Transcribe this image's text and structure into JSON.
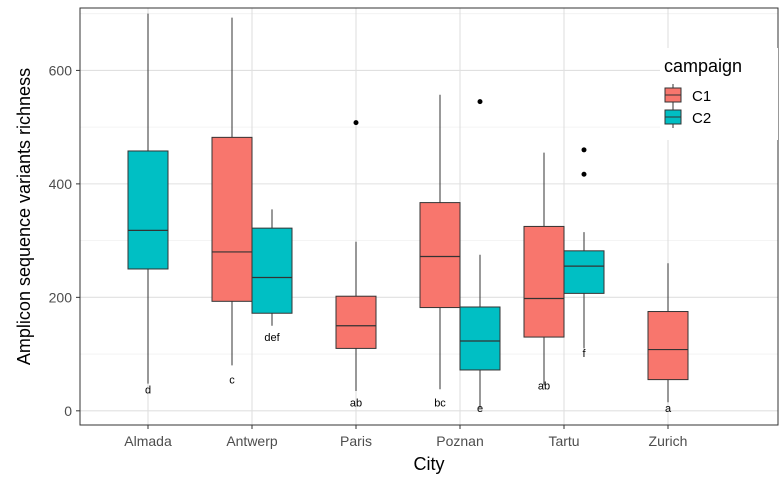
{
  "chart_data": {
    "type": "boxplot",
    "xlabel": "City",
    "ylabel": "Amplicon sequence variants richness",
    "ylim": [
      -25,
      710
    ],
    "yticks": [
      0,
      200,
      400,
      600
    ],
    "categories": [
      "Almada",
      "Antwerp",
      "Paris",
      "Poznan",
      "Tartu",
      "Zurich"
    ],
    "legend": {
      "title": "campaign",
      "position": "top-right",
      "entries": [
        {
          "label": "C1",
          "color": "#f8766d"
        },
        {
          "label": "C2",
          "color": "#00bfc4"
        }
      ]
    },
    "grid": true,
    "series": [
      {
        "name": "C1",
        "color": "#f8766d",
        "boxes": [
          {
            "category": "Antwerp",
            "whisker_low": 80,
            "q1": 193,
            "median": 280,
            "q3": 482,
            "whisker_high": 693,
            "outliers": [],
            "letter": "c",
            "letter_y": 55
          },
          {
            "category": "Paris",
            "whisker_low": 35,
            "q1": 110,
            "median": 150,
            "q3": 202,
            "whisker_high": 298,
            "outliers": [
              508
            ],
            "letter": "ab",
            "letter_y": 15
          },
          {
            "category": "Poznan",
            "whisker_low": 38,
            "q1": 182,
            "median": 272,
            "q3": 367,
            "whisker_high": 557,
            "outliers": [],
            "letter": "bc",
            "letter_y": 15
          },
          {
            "category": "Tartu",
            "whisker_low": 45,
            "q1": 130,
            "median": 198,
            "q3": 325,
            "whisker_high": 455,
            "outliers": [],
            "letter": "ab",
            "letter_y": 45
          },
          {
            "category": "Zurich",
            "whisker_low": 15,
            "q1": 55,
            "median": 108,
            "q3": 175,
            "whisker_high": 260,
            "outliers": [],
            "letter": "a",
            "letter_y": 5
          }
        ]
      },
      {
        "name": "C2",
        "color": "#00bfc4",
        "boxes": [
          {
            "category": "Almada",
            "whisker_low": 48,
            "q1": 250,
            "median": 318,
            "q3": 458,
            "whisker_high": 700,
            "outliers": [],
            "letter": "d",
            "letter_y": 38
          },
          {
            "category": "Antwerp",
            "whisker_low": 150,
            "q1": 172,
            "median": 235,
            "q3": 322,
            "whisker_high": 355,
            "outliers": [],
            "letter": "def",
            "letter_y": 130
          },
          {
            "category": "Poznan",
            "whisker_low": 5,
            "q1": 72,
            "median": 123,
            "q3": 183,
            "whisker_high": 275,
            "outliers": [
              545
            ],
            "letter": "e",
            "letter_y": 5
          },
          {
            "category": "Tartu",
            "whisker_low": 110,
            "q1": 207,
            "median": 255,
            "q3": 282,
            "whisker_high": 315,
            "outliers": [
              460,
              417
            ],
            "letter": "f",
            "letter_y": 102
          }
        ]
      }
    ]
  }
}
